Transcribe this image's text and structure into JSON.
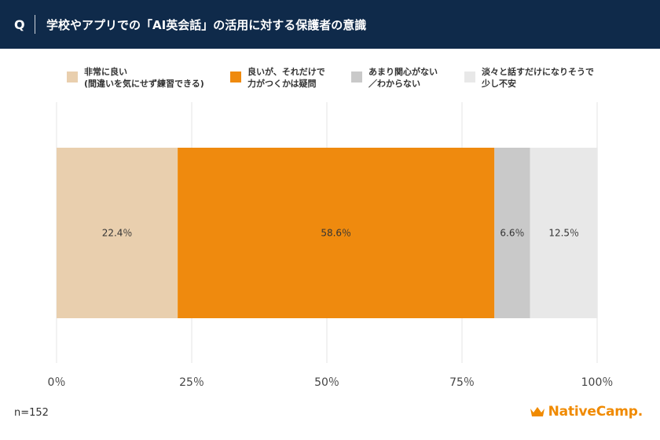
{
  "header": {
    "q_label": "Q",
    "title": "学校やアプリでの「AI英会話」の活用に対する保護者の意識"
  },
  "chart_data": {
    "type": "bar",
    "orientation": "horizontal-stacked-100",
    "categories": [
      ""
    ],
    "series": [
      {
        "name": "非常に良い（間違いを気にせず練習できる）",
        "legend_lines": [
          "非常に良い",
          "(間違いを気にせず練習できる)"
        ],
        "values": [
          22.4
        ],
        "label": "22.4％",
        "color": "#e9cfae"
      },
      {
        "name": "良いが、それだけで力がつくかは疑問",
        "legend_lines": [
          "良いが、それだけで",
          "力がつくかは疑問"
        ],
        "values": [
          58.6
        ],
        "label": "58.6％",
        "color": "#ef8a0e"
      },
      {
        "name": "あまり関心がない／わからない",
        "legend_lines": [
          "あまり関心がない",
          "／わからない"
        ],
        "values": [
          6.6
        ],
        "label": "6.6％",
        "color": "#c9c9c9"
      },
      {
        "name": "淡々と話すだけになりそうで少し不安",
        "legend_lines": [
          "淡々と話すだけになりそうで",
          "少し不安"
        ],
        "values": [
          12.5
        ],
        "label": "12.5％",
        "color": "#e8e8e8"
      }
    ],
    "xlim": [
      0,
      100
    ],
    "x_ticks": [
      0,
      25,
      50,
      75,
      100
    ],
    "x_tick_labels": [
      "0％",
      "25％",
      "50％",
      "75％",
      "100％"
    ],
    "grid": true,
    "legend_position": "top"
  },
  "footer": {
    "sample_size": "n=152",
    "brand_name": "NativeCamp.",
    "brand_color": "#f08a00"
  }
}
